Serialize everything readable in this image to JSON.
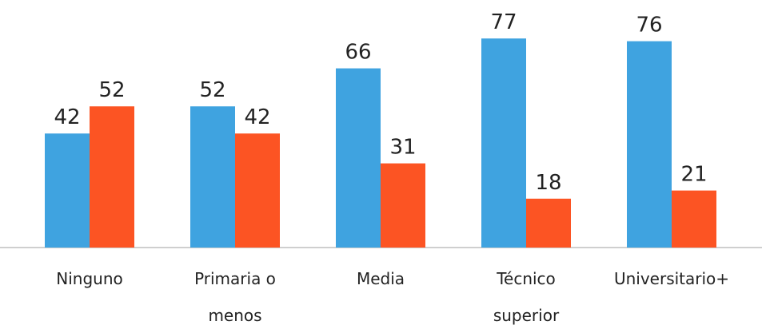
{
  "chart_data": {
    "type": "bar",
    "categories": [
      "Ninguno",
      "Primaria o menos",
      "Media",
      "Técnico superior",
      "Universitario+"
    ],
    "series": [
      {
        "color": "#3fa3e0",
        "values": [
          42,
          52,
          66,
          77,
          76
        ]
      },
      {
        "color": "#fc5423",
        "values": [
          52,
          42,
          31,
          18,
          21
        ]
      }
    ],
    "ylim": [
      0,
      80
    ]
  }
}
